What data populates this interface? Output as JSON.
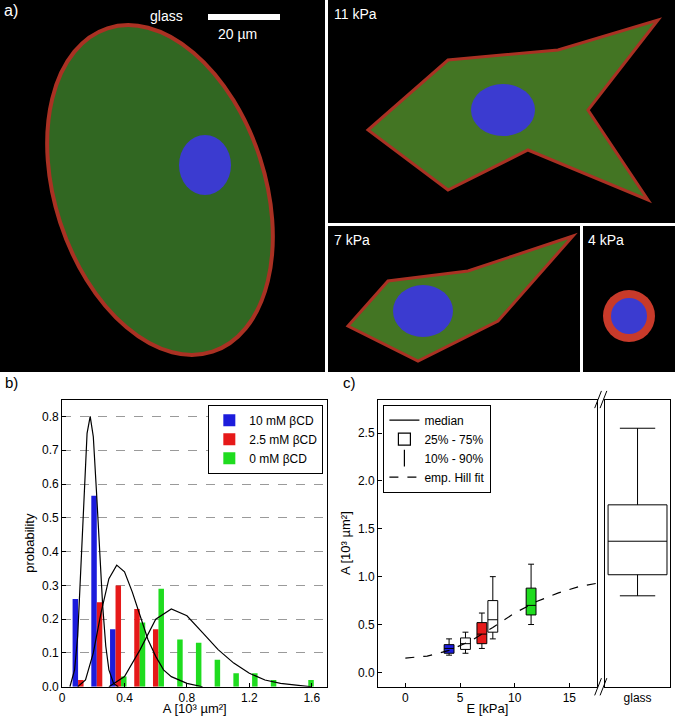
{
  "figure": {
    "panel_label": "a)",
    "scale_bar": "20 µm",
    "images": [
      "glass",
      "11 kPa",
      "7 kPa",
      "4 kPa"
    ]
  },
  "chart_data": [
    {
      "type": "bar",
      "annotations": [
        "b)"
      ],
      "x_label": "A [10³ µm²]",
      "y_label": "probability",
      "x": [
        0.12,
        0.24,
        0.36,
        0.48,
        0.6,
        0.72,
        0.84,
        0.96,
        1.08,
        1.2,
        1.32,
        1.44,
        1.56
      ],
      "series": [
        {
          "name": "10 mM βCD",
          "color": "#1c1cdc",
          "values": [
            0.26,
            0.565,
            0.17,
            0,
            0,
            0,
            0,
            0,
            0,
            0,
            0,
            0,
            0
          ]
        },
        {
          "name": "2.5 mM βCD",
          "color": "#e61919",
          "values": [
            0.02,
            0.25,
            0.3,
            0.23,
            0.17,
            0,
            0,
            0,
            0,
            0,
            0,
            0,
            0
          ]
        },
        {
          "name": "0 mM βCD",
          "color": "#1fdc1f",
          "values": [
            0,
            0,
            0.03,
            0.19,
            0.29,
            0.14,
            0.13,
            0.08,
            0.04,
            0.04,
            0.02,
            0,
            0.02
          ]
        },
        {
          "type": "line",
          "color": "#000000",
          "x": [
            0.05,
            0.08,
            0.1,
            0.12,
            0.14,
            0.16,
            0.18,
            0.2,
            0.22,
            0.24,
            0.26,
            0.28,
            0.3,
            0.33,
            0.36
          ],
          "values": [
            0,
            0.05,
            0.15,
            0.35,
            0.58,
            0.75,
            0.8,
            0.74,
            0.58,
            0.4,
            0.24,
            0.12,
            0.05,
            0.01,
            0
          ]
        },
        {
          "type": "line",
          "color": "#000000",
          "x": [
            0.1,
            0.15,
            0.2,
            0.25,
            0.3,
            0.35,
            0.4,
            0.45,
            0.5,
            0.55,
            0.6,
            0.65,
            0.7,
            0.8,
            0.9
          ],
          "values": [
            0,
            0.02,
            0.1,
            0.22,
            0.32,
            0.36,
            0.34,
            0.28,
            0.21,
            0.14,
            0.09,
            0.05,
            0.03,
            0.01,
            0
          ]
        },
        {
          "type": "line",
          "color": "#000000",
          "x": [
            0.3,
            0.4,
            0.5,
            0.6,
            0.7,
            0.8,
            0.9,
            1.0,
            1.1,
            1.2,
            1.3,
            1.4,
            1.5,
            1.6
          ],
          "values": [
            0,
            0.03,
            0.11,
            0.2,
            0.23,
            0.21,
            0.16,
            0.11,
            0.07,
            0.04,
            0.02,
            0.01,
            0.005,
            0
          ]
        }
      ],
      "xlim": [
        0,
        1.7
      ],
      "xticks": [
        0,
        0.4,
        0.8,
        1.2,
        1.6
      ],
      "ylim": [
        0,
        0.85
      ],
      "yticks": [
        {
          "value": 0,
          "label": "0.0"
        },
        0.1,
        0.2,
        0.3,
        0.4,
        0.5,
        0.6,
        0.7,
        0.8
      ],
      "grid": "y",
      "legend": "top right"
    },
    {
      "type": "box",
      "annotations": [
        "c)"
      ],
      "x_label": "E [kPa]",
      "y_label": "A [10³ µm²]",
      "series": [
        {
          "name": "median",
          "line_style": "solid",
          "color": "#000000"
        },
        {
          "name": "25% - 75%",
          "marker": "square-open",
          "color": "#000000"
        },
        {
          "name": "10% - 90%",
          "marker": "line-ns-open",
          "color": "#000000"
        },
        {
          "name": "emp. Hill fit",
          "type": "line",
          "line_style": "dash",
          "color": "#000000",
          "x": [
            0,
            2,
            4,
            6,
            8,
            10,
            12,
            14,
            16,
            17.5
          ],
          "values": [
            0.15,
            0.17,
            0.23,
            0.33,
            0.47,
            0.62,
            0.74,
            0.83,
            0.9,
            0.93
          ]
        }
      ],
      "boxes": [
        {
          "x": 4,
          "q10": 0.18,
          "q25": 0.2,
          "median": 0.25,
          "q75": 0.29,
          "q90": 0.35,
          "color": "#1c1cdc"
        },
        {
          "x": 5.5,
          "q10": 0.2,
          "q25": 0.24,
          "median": 0.3,
          "q75": 0.36,
          "q90": 0.42,
          "color": "#ffffff"
        },
        {
          "x": 7,
          "q10": 0.25,
          "q25": 0.3,
          "median": 0.4,
          "q75": 0.52,
          "q90": 0.62,
          "color": "#e61919"
        },
        {
          "x": 8,
          "q10": 0.35,
          "q25": 0.42,
          "median": 0.55,
          "q75": 0.75,
          "q90": 1.0,
          "color": "#ffffff"
        },
        {
          "x": 11.5,
          "q10": 0.5,
          "q25": 0.6,
          "median": 0.7,
          "q75": 0.88,
          "q90": 1.13,
          "color": "#1fdc1f"
        },
        {
          "x": "glass",
          "q10": 0.8,
          "q25": 1.02,
          "median": 1.37,
          "q75": 1.75,
          "q90": 2.55,
          "color": "#ffffff"
        }
      ],
      "xlim": [
        -2.5,
        17.5
      ],
      "xticks": [
        0,
        5,
        10,
        15
      ],
      "ylim": [
        -0.15,
        2.85
      ],
      "yticks": [
        {
          "value": 0,
          "label": "0.0"
        },
        0.5,
        {
          "value": 1,
          "label": "1.0"
        },
        1.5,
        {
          "value": 2,
          "label": "2.0"
        },
        2.5
      ],
      "legend": "top left"
    }
  ]
}
